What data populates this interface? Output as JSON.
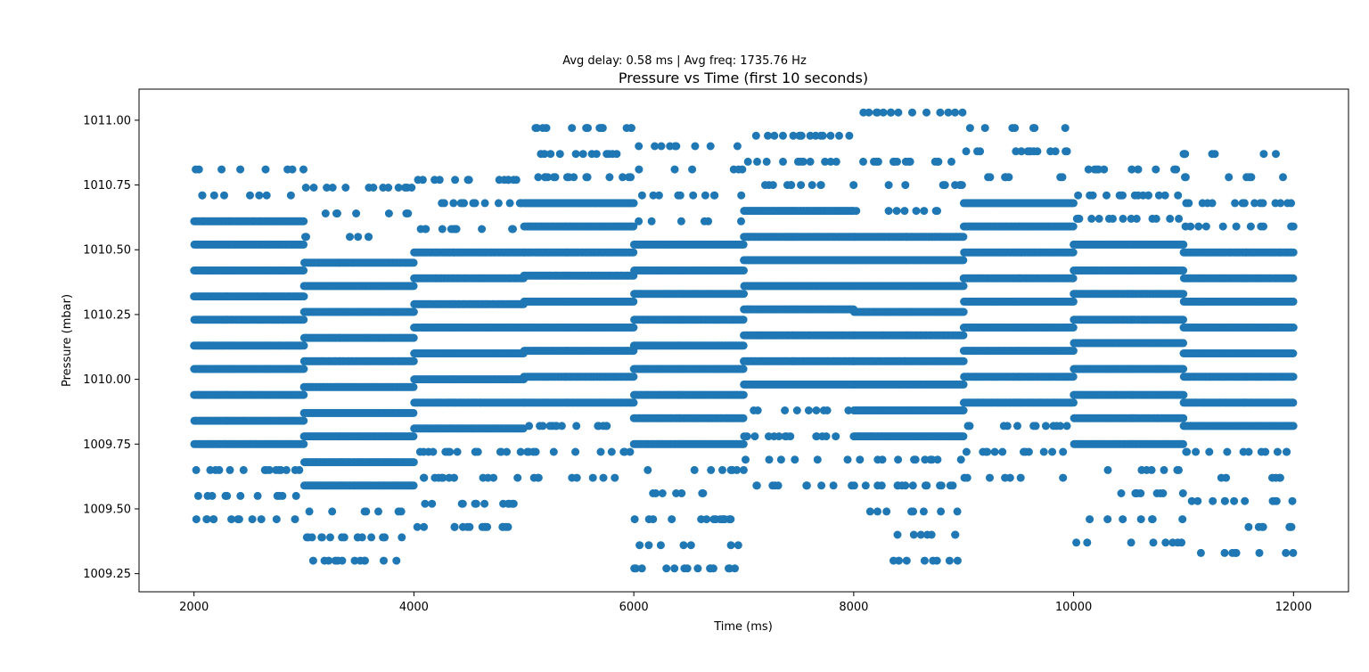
{
  "chart_data": {
    "type": "scatter",
    "suptitle": "Avg delay: 0.58 ms | Avg freq: 1735.76 Hz",
    "title": "Pressure vs Time (first 10 seconds)",
    "xlabel": "Time (ms)",
    "ylabel": "Pressure (mbar)",
    "xlim": [
      1500,
      12500
    ],
    "ylim": [
      1009.18,
      1011.12
    ],
    "xticks": [
      2000,
      4000,
      6000,
      8000,
      10000,
      12000
    ],
    "yticks": [
      1009.25,
      1009.5,
      1009.75,
      1010.0,
      1010.25,
      1010.5,
      1010.75,
      1011.0
    ],
    "grid": false,
    "marker_color": "#1f77b4",
    "series_blocks": [
      {
        "x_start": 2000,
        "x_end": 3000,
        "dense_levels": [
          1009.75,
          1009.84,
          1009.94,
          1010.04,
          1010.13,
          1010.23,
          1010.32,
          1010.42,
          1010.52,
          1010.61
        ],
        "sparse_levels": [
          1009.65,
          1009.55,
          1009.46,
          1010.71,
          1010.81
        ]
      },
      {
        "x_start": 3000,
        "x_end": 4000,
        "dense_levels": [
          1009.59,
          1009.68,
          1009.78,
          1009.87,
          1009.97,
          1010.07,
          1010.16,
          1010.26,
          1010.36,
          1010.45
        ],
        "sparse_levels": [
          1009.49,
          1009.39,
          1009.3,
          1010.55,
          1010.64,
          1010.74
        ]
      },
      {
        "x_start": 4000,
        "x_end": 5000,
        "dense_levels": [
          1009.81,
          1009.91,
          1010.0,
          1010.1,
          1010.2,
          1010.29,
          1010.39,
          1010.49
        ],
        "sparse_levels": [
          1009.72,
          1009.62,
          1009.52,
          1009.43,
          1010.58,
          1010.68,
          1010.77
        ]
      },
      {
        "x_start": 5000,
        "x_end": 6000,
        "dense_levels": [
          1009.91,
          1010.01,
          1010.11,
          1010.2,
          1010.3,
          1010.4,
          1010.49,
          1010.59,
          1010.68
        ],
        "sparse_levels": [
          1009.82,
          1009.72,
          1009.62,
          1010.78,
          1010.87,
          1010.97
        ]
      },
      {
        "x_start": 6000,
        "x_end": 7000,
        "dense_levels": [
          1009.75,
          1009.85,
          1009.94,
          1010.04,
          1010.13,
          1010.23,
          1010.33,
          1010.42,
          1010.52
        ],
        "sparse_levels": [
          1009.65,
          1009.56,
          1009.46,
          1009.36,
          1009.27,
          1010.61,
          1010.71,
          1010.81,
          1010.9
        ]
      },
      {
        "x_start": 7000,
        "x_end": 8000,
        "dense_levels": [
          1009.98,
          1010.07,
          1010.17,
          1010.27,
          1010.36,
          1010.46,
          1010.55,
          1010.65
        ],
        "sparse_levels": [
          1009.88,
          1009.78,
          1009.69,
          1009.59,
          1010.75,
          1010.84,
          1010.94
        ]
      },
      {
        "x_start": 8000,
        "x_end": 9000,
        "dense_levels": [
          1009.78,
          1009.88,
          1009.98,
          1010.07,
          1010.17,
          1010.26,
          1010.36,
          1010.46,
          1010.55
        ],
        "sparse_levels": [
          1009.69,
          1009.59,
          1009.49,
          1009.4,
          1009.3,
          1010.65,
          1010.75,
          1010.84,
          1011.03
        ]
      },
      {
        "x_start": 9000,
        "x_end": 10000,
        "dense_levels": [
          1009.91,
          1010.01,
          1010.11,
          1010.2,
          1010.3,
          1010.39,
          1010.49,
          1010.59,
          1010.68
        ],
        "sparse_levels": [
          1009.82,
          1009.72,
          1009.62,
          1010.78,
          1010.88,
          1010.97
        ]
      },
      {
        "x_start": 10000,
        "x_end": 11000,
        "dense_levels": [
          1009.75,
          1009.85,
          1009.94,
          1010.04,
          1010.14,
          1010.23,
          1010.33,
          1010.42,
          1010.52
        ],
        "sparse_levels": [
          1009.65,
          1009.56,
          1009.46,
          1009.37,
          1010.62,
          1010.71,
          1010.81
        ]
      },
      {
        "x_start": 11000,
        "x_end": 12000,
        "dense_levels": [
          1009.82,
          1009.91,
          1010.01,
          1010.1,
          1010.2,
          1010.3,
          1010.39,
          1010.49
        ],
        "sparse_levels": [
          1009.72,
          1009.62,
          1009.53,
          1009.43,
          1009.33,
          1010.59,
          1010.68,
          1010.78,
          1010.87
        ]
      }
    ]
  }
}
